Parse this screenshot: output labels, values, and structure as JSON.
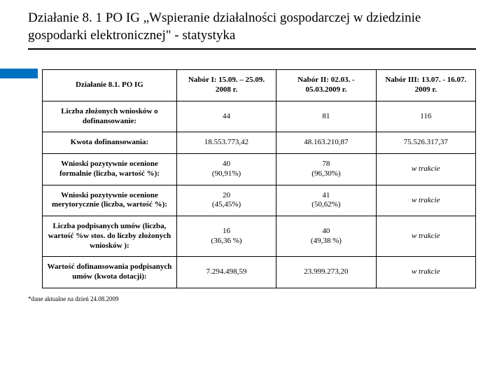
{
  "title": "Działanie 8. 1 PO IG „Wspieranie działalności gospodarczej w dziedzinie gospodarki elektronicznej\" - statystyka",
  "columns": [
    "Działanie 8.1. PO IG",
    "Nabór I: 15.09. – 25.09. 2008 r.",
    "Nabór II: 02.03. - 05.03.2009 r.",
    "Nabór III: 13.07. - 16.07. 2009 r."
  ],
  "rows": [
    {
      "label": "Liczba złożonych wniosków o dofinansowanie:",
      "c1": "44",
      "c2": "81",
      "c3": "116"
    },
    {
      "label": "Kwota dofinansowania:",
      "c1": "18.553.773,42",
      "c2": "48.163.210,87",
      "c3": "75.526.317,37"
    },
    {
      "label": "Wnioski pozytywnie ocenione formalnie (liczba, wartość %):",
      "c1": "40\n(90,91%)",
      "c2": "78\n(96,30%)",
      "c3": "w trakcie",
      "c3_italic": true
    },
    {
      "label": "Wnioski pozytywnie ocenione merytorycznie (liczba, wartość %):",
      "c1": "20\n(45,45%)",
      "c2": "41\n(50,62%)",
      "c3": "w trakcie",
      "c3_italic": true
    },
    {
      "label": "Liczba podpisanych umów (liczba, wartość %w stos. do liczby złożonych wniosków ):",
      "c1": "16\n(36,36 %)",
      "c2": "40\n(49,38 %)",
      "c3": "w trakcie",
      "c3_italic": true
    },
    {
      "label": "Wartość dofinansowania podpisanych umów (kwota dotacji):",
      "c1": "7.294.498,59",
      "c2": "23.999.273,20",
      "c3": "w trakcie",
      "c3_italic": true
    }
  ],
  "footnote": "*dane aktualne na dzień 24.08.2009",
  "styles": {
    "accent_color": "#0070c0",
    "border_color": "#000000",
    "background": "#ffffff",
    "title_fontsize": 19,
    "table_fontsize": 11,
    "footnote_fontsize": 9
  }
}
